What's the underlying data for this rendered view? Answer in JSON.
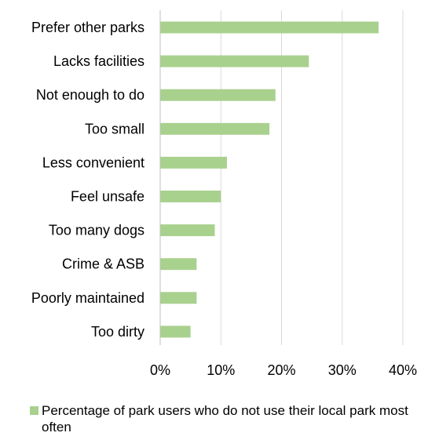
{
  "colors": {
    "bar": "#a9d18e",
    "gridline": "#d9d9d9",
    "axis": "#bfbfbf"
  },
  "chart_data": {
    "type": "bar",
    "orientation": "horizontal",
    "categories": [
      "Prefer other parks",
      "Lacks facilities",
      "Not enough to do",
      "Too small",
      "Less convenient",
      "Feel unsafe",
      "Too many dogs",
      "Crime & ASB",
      "Poorly maintained",
      "Too dirty"
    ],
    "series": [
      {
        "name": "Percentage of park users who do not use their local park most often",
        "values": [
          36,
          24.5,
          19,
          18,
          11,
          10,
          9,
          6,
          6,
          5
        ]
      }
    ],
    "xlim": [
      0,
      40
    ],
    "xticks": [
      0,
      10,
      20,
      30,
      40
    ],
    "xtick_labels": [
      "0%",
      "10%",
      "20%",
      "30%",
      "40%"
    ],
    "grid": true,
    "legend_position": "bottom"
  }
}
